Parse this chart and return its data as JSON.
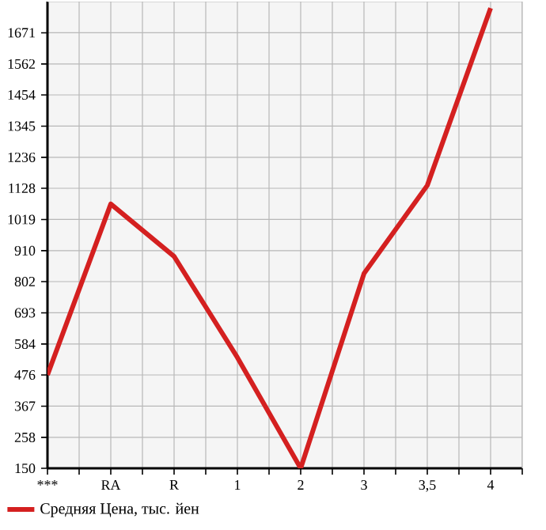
{
  "chart_data": {
    "type": "line",
    "categories": [
      "***",
      "RA",
      "R",
      "1",
      "2",
      "3",
      "3,5",
      "4"
    ],
    "series": [
      {
        "name": "Средняя Цена, тыс. йен",
        "color": "#d42020",
        "values": [
          476,
          1073,
          890,
          537,
          150,
          830,
          1138,
          1757
        ]
      }
    ],
    "ylim": [
      150,
      1780
    ],
    "yticks": [
      150,
      258,
      367,
      476,
      584,
      693,
      802,
      910,
      1019,
      1128,
      1236,
      1345,
      1454,
      1562,
      1671
    ],
    "grid": true,
    "legend": "bottom left",
    "marker": "none",
    "line_style": "solid"
  }
}
